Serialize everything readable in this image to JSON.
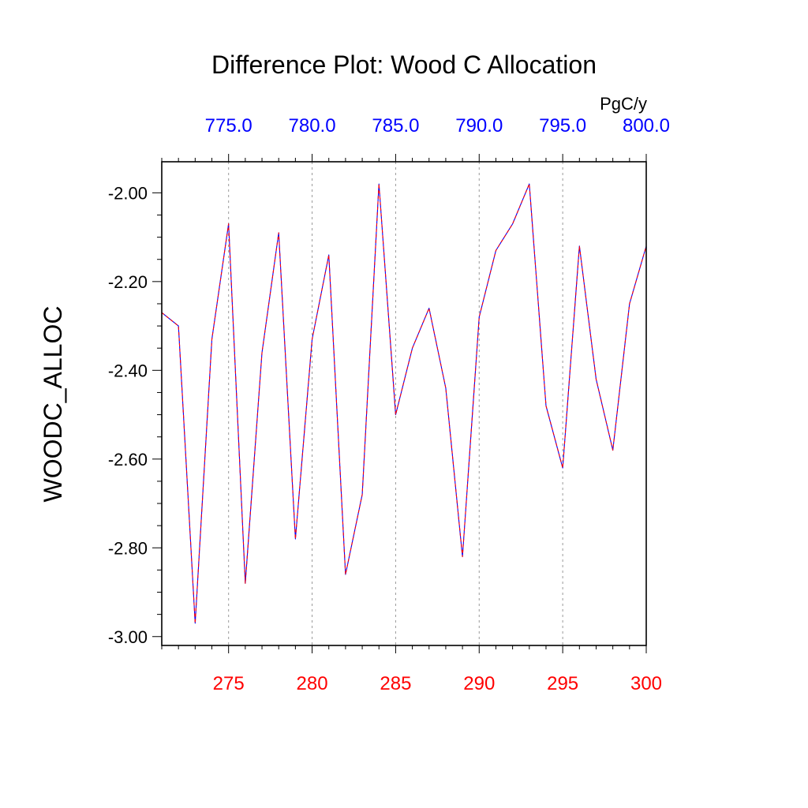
{
  "chart_data": {
    "type": "line",
    "title": "Difference Plot: Wood C Allocation",
    "ylabel": "WOODC_ALLOC",
    "units": "PgC/y",
    "xlim": [
      271,
      300
    ],
    "ylim": [
      -3.02,
      -1.93
    ],
    "bottom_axis": {
      "color": "#ff0000",
      "ticks": [
        275,
        280,
        285,
        290,
        295,
        300
      ],
      "tick_labels": [
        "275",
        "280",
        "285",
        "290",
        "295",
        "300"
      ]
    },
    "top_axis": {
      "color": "#0000ff",
      "ticks": [
        275,
        280,
        285,
        290,
        295,
        300
      ],
      "tick_labels": [
        "775.0",
        "780.0",
        "785.0",
        "790.0",
        "795.0",
        "800.0"
      ]
    },
    "y_ticks": [
      -2.0,
      -2.2,
      -2.4,
      -2.6,
      -2.8,
      -3.0
    ],
    "y_tick_labels": [
      "-2.00",
      "-2.20",
      "-2.40",
      "-2.60",
      "-2.80",
      "-3.00"
    ],
    "vertical_grid": true,
    "series": [
      {
        "color": "#0000ff",
        "style": "solid",
        "x": [
          271,
          272,
          273,
          274,
          275,
          276,
          277,
          278,
          279,
          280,
          281,
          282,
          283,
          284,
          285,
          286,
          287,
          288,
          289,
          290,
          291,
          292,
          293,
          294,
          295,
          296,
          297,
          298,
          299,
          300
        ],
        "values": [
          -2.27,
          -2.3,
          -2.97,
          -2.33,
          -2.07,
          -2.88,
          -2.36,
          -2.09,
          -2.78,
          -2.33,
          -2.14,
          -2.86,
          -2.68,
          -1.98,
          -2.5,
          -2.35,
          -2.26,
          -2.44,
          -2.82,
          -2.28,
          -2.13,
          -2.07,
          -1.98,
          -2.48,
          -2.62,
          -2.12,
          -2.42,
          -2.58,
          -2.25,
          -2.12
        ]
      },
      {
        "color": "#ff0000",
        "style": "dashed",
        "x": [
          271,
          272,
          273,
          274,
          275,
          276,
          277,
          278,
          279,
          280,
          281,
          282,
          283,
          284,
          285,
          286,
          287,
          288,
          289,
          290,
          291,
          292,
          293,
          294,
          295,
          296,
          297,
          298,
          299,
          300
        ],
        "values": [
          -2.27,
          -2.3,
          -2.97,
          -2.33,
          -2.07,
          -2.88,
          -2.36,
          -2.09,
          -2.78,
          -2.33,
          -2.14,
          -2.86,
          -2.68,
          -1.98,
          -2.5,
          -2.35,
          -2.26,
          -2.44,
          -2.82,
          -2.28,
          -2.13,
          -2.07,
          -1.98,
          -2.48,
          -2.62,
          -2.12,
          -2.42,
          -2.58,
          -2.25,
          -2.12
        ]
      }
    ]
  }
}
